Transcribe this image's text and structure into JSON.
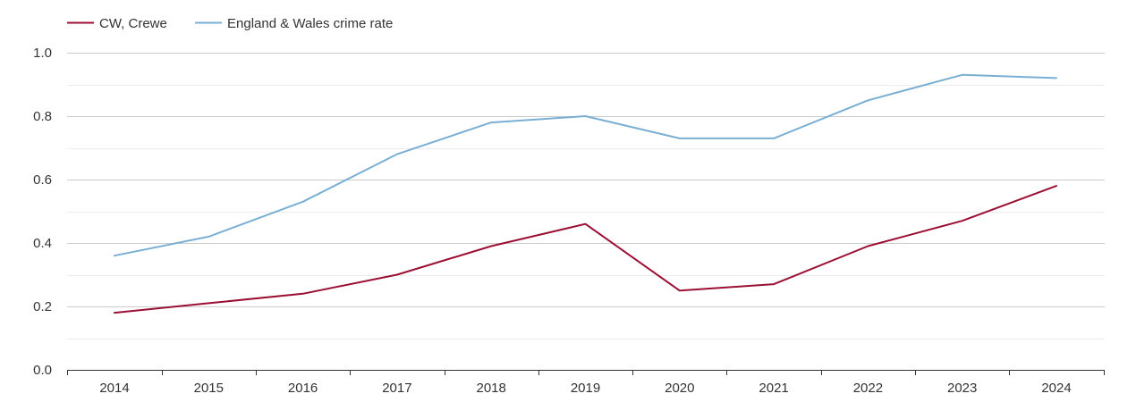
{
  "chart_data": {
    "type": "line",
    "title": "",
    "xlabel": "",
    "ylabel": "",
    "x": [
      "2014",
      "2015",
      "2016",
      "2017",
      "2018",
      "2019",
      "2020",
      "2021",
      "2022",
      "2023",
      "2024"
    ],
    "ylim": [
      0,
      1
    ],
    "yticks": [
      "0.0",
      "0.2",
      "0.4",
      "0.6",
      "0.8",
      "1.0"
    ],
    "grid": true,
    "legend_position": "top-left",
    "series": [
      {
        "name": "CW, Crewe",
        "color": "#9b0f33",
        "values": [
          0.18,
          0.21,
          0.24,
          0.3,
          0.39,
          0.46,
          0.25,
          0.27,
          0.39,
          0.47,
          0.58
        ]
      },
      {
        "name": "England & Wales crime rate",
        "color": "#7aafd4",
        "values": [
          0.36,
          0.42,
          0.53,
          0.68,
          0.78,
          0.8,
          0.73,
          0.73,
          0.85,
          0.93,
          0.92
        ]
      }
    ]
  }
}
